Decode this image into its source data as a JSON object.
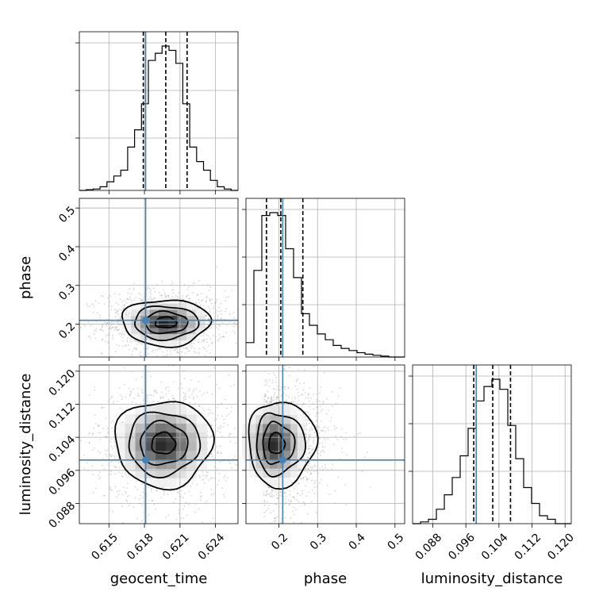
{
  "chart_data": {
    "type": "corner",
    "parameters": [
      "geocent_time",
      "phase",
      "luminosity_distance"
    ],
    "axis_labels": {
      "geocent_time": "geocent_time",
      "phase": "phase",
      "luminosity_distance": "luminosity_distance"
    },
    "ranges": {
      "geocent_time": [
        0.6125,
        0.6259
      ],
      "phase": [
        0.115,
        0.525
      ],
      "luminosity_distance": [
        0.0831,
        0.1215
      ]
    },
    "ticks": {
      "geocent_time": [
        "0.615",
        "0.618",
        "0.621",
        "0.624"
      ],
      "phase": [
        "0.2",
        "0.3",
        "0.4",
        "0.5"
      ],
      "luminosity_distance": [
        "0.088",
        "0.096",
        "0.104",
        "0.112",
        "0.120"
      ]
    },
    "truths": {
      "geocent_time": 0.6181,
      "phase": 0.21,
      "luminosity_distance": 0.0985
    },
    "quantiles": {
      "geocent_time": [
        0.6179,
        0.6198,
        0.6216
      ],
      "phase": [
        0.168,
        0.205,
        0.262
      ],
      "luminosity_distance": [
        0.0979,
        0.1025,
        0.1068
      ]
    },
    "histograms": {
      "geocent_time": [
        0.0,
        0.005,
        0.01,
        0.025,
        0.06,
        0.1,
        0.14,
        0.3,
        0.42,
        0.6,
        0.9,
        0.95,
        1.0,
        0.97,
        0.88,
        0.6,
        0.3,
        0.2,
        0.14,
        0.07,
        0.025,
        0.01,
        0.0
      ],
      "phase": [
        0.1,
        0.6,
        0.98,
        1.0,
        0.98,
        0.75,
        0.55,
        0.3,
        0.22,
        0.16,
        0.12,
        0.08,
        0.06,
        0.045,
        0.03,
        0.02,
        0.012,
        0.006,
        0.0,
        0.0
      ],
      "luminosity_distance": [
        0.0,
        0.012,
        0.03,
        0.1,
        0.2,
        0.32,
        0.47,
        0.66,
        0.85,
        0.95,
        1.0,
        0.93,
        0.68,
        0.45,
        0.25,
        0.14,
        0.055,
        0.03,
        0.0,
        0.0
      ]
    },
    "contours": [
      {
        "x": "geocent_time",
        "y": "phase",
        "center": [
          0.6198,
          0.204
        ],
        "radii": [
          [
            0.0037,
            0.06
          ],
          [
            0.0027,
            0.043
          ],
          [
            0.0018,
            0.028
          ],
          [
            0.0009,
            0.014
          ]
        ],
        "dense": {
          "shape": [
            10,
            8
          ],
          "intensity": 0.9
        }
      },
      {
        "x": "geocent_time",
        "y": "luminosity_distance",
        "center": [
          0.6196,
          0.1025
        ],
        "radii": [
          [
            0.0041,
            0.0105
          ],
          [
            0.003,
            0.0077
          ],
          [
            0.002,
            0.0052
          ],
          [
            0.001,
            0.0026
          ]
        ],
        "dense": {
          "shape": [
            10,
            10
          ],
          "intensity": 0.85
        }
      },
      {
        "x": "phase",
        "y": "luminosity_distance",
        "center": [
          0.19,
          0.1025
        ],
        "radii": [
          [
            0.085,
            0.0103
          ],
          [
            0.061,
            0.0075
          ],
          [
            0.04,
            0.005
          ],
          [
            0.02,
            0.0025
          ]
        ],
        "dense": {
          "shape": [
            10,
            10
          ],
          "intensity": 0.85
        }
      }
    ],
    "grid": true,
    "colors": {
      "truth": "#4682b4",
      "lines": "#000000",
      "grid": "#b0b0b0"
    }
  }
}
